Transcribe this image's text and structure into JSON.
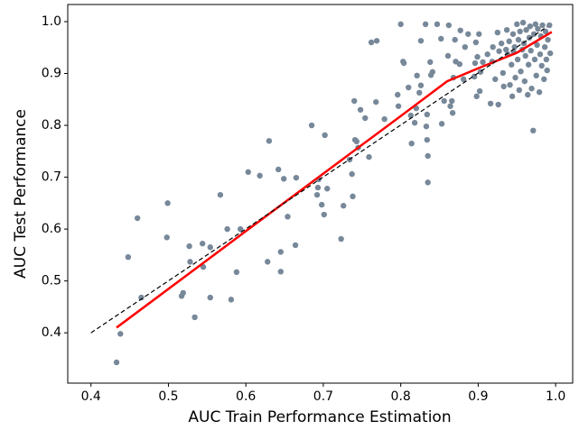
{
  "chart_data": {
    "type": "scatter",
    "xlabel": "AUC Train Performance Estimation",
    "ylabel": "AUC Test Performance",
    "xlim": [
      0.37,
      1.022
    ],
    "ylim": [
      0.303,
      1.033
    ],
    "xticks": [
      0.4,
      0.5,
      0.6,
      0.7,
      0.8,
      0.9,
      {
        "value": 1,
        "label": "1.0"
      }
    ],
    "yticks": [
      0.4,
      0.5,
      0.6,
      0.7,
      0.8,
      0.9,
      {
        "value": 1,
        "label": "1.0"
      }
    ],
    "series": [
      {
        "type": "scatter",
        "color": "#778899",
        "x": [
          0.433,
          0.438,
          0.448,
          0.46,
          0.465,
          0.498,
          0.499,
          0.517,
          0.519,
          0.527,
          0.528,
          0.534,
          0.544,
          0.545,
          0.554,
          0.554,
          0.567,
          0.576,
          0.581,
          0.588,
          0.593,
          0.603,
          0.618,
          0.628,
          0.63,
          0.642,
          0.645,
          0.645,
          0.649,
          0.654,
          0.664,
          0.665,
          0.685,
          0.692,
          0.693,
          0.694,
          0.698,
          0.701,
          0.702,
          0.705,
          0.723,
          0.726,
          0.734,
          0.737,
          0.738,
          0.74,
          0.741,
          0.743,
          0.745,
          0.748,
          0.754,
          0.759,
          0.762,
          0.769,
          0.768,
          0.779,
          0.796,
          0.797,
          0.8,
          0.803,
          0.804,
          0.81,
          0.813,
          0.814,
          0.818,
          0.82,
          0.821,
          0.824,
          0.826,
          0.826,
          0.832,
          0.833,
          0.834,
          0.834,
          0.835,
          0.835,
          0.838,
          0.839,
          0.841,
          0.847,
          0.852,
          0.853,
          0.856,
          0.861,
          0.862,
          0.864,
          0.866,
          0.867,
          0.868,
          0.87,
          0.871,
          0.876,
          0.877,
          0.881,
          0.883,
          0.887,
          0.895,
          0.896,
          0.897,
          0.898,
          0.899,
          0.901,
          0.902,
          0.903,
          0.906,
          0.912,
          0.916,
          0.918,
          0.919,
          0.922,
          0.925,
          0.926,
          0.927,
          0.93,
          0.932,
          0.933,
          0.936,
          0.937,
          0.938,
          0.94,
          0.941,
          0.943,
          0.944,
          0.945,
          0.946,
          0.947,
          0.948,
          0.95,
          0.951,
          0.952,
          0.953,
          0.954,
          0.955,
          0.957,
          0.958,
          0.959,
          0.96,
          0.961,
          0.962,
          0.964,
          0.965,
          0.966,
          0.967,
          0.968,
          0.969,
          0.971,
          0.972,
          0.973,
          0.974,
          0.975,
          0.976,
          0.977,
          0.979,
          0.98,
          0.981,
          0.982,
          0.983,
          0.985,
          0.986,
          0.987,
          0.988,
          0.989,
          0.99,
          0.992,
          0.993
        ],
        "values": [
          0.343,
          0.398,
          0.546,
          0.621,
          0.468,
          0.584,
          0.65,
          0.471,
          0.477,
          0.567,
          0.537,
          0.43,
          0.572,
          0.527,
          0.468,
          0.565,
          0.666,
          0.6,
          0.464,
          0.517,
          0.6,
          0.71,
          0.703,
          0.537,
          0.77,
          0.715,
          0.556,
          0.518,
          0.697,
          0.624,
          0.569,
          0.699,
          0.8,
          0.666,
          0.68,
          0.696,
          0.647,
          0.628,
          0.781,
          0.678,
          0.581,
          0.645,
          0.734,
          0.706,
          0.663,
          0.847,
          0.772,
          0.769,
          0.757,
          0.83,
          0.814,
          0.739,
          0.96,
          0.963,
          0.845,
          0.812,
          0.859,
          0.837,
          0.995,
          0.923,
          0.92,
          0.873,
          0.819,
          0.765,
          0.805,
          0.833,
          0.896,
          0.863,
          0.877,
          0.963,
          0.995,
          0.798,
          0.772,
          0.821,
          0.741,
          0.69,
          0.922,
          0.897,
          0.903,
          0.995,
          0.967,
          0.803,
          0.847,
          0.934,
          0.993,
          0.837,
          0.847,
          0.824,
          0.892,
          0.965,
          0.923,
          0.918,
          0.983,
          0.889,
          0.951,
          0.976,
          0.894,
          0.92,
          0.96,
          0.856,
          0.932,
          0.976,
          0.866,
          0.903,
          0.922,
          0.937,
          0.842,
          0.923,
          0.951,
          0.889,
          0.979,
          0.84,
          0.943,
          0.958,
          0.901,
          0.875,
          0.946,
          0.984,
          0.937,
          0.962,
          0.878,
          0.917,
          0.856,
          0.976,
          0.941,
          0.951,
          0.892,
          0.995,
          0.927,
          0.965,
          0.868,
          0.981,
          0.904,
          0.946,
          0.998,
          0.958,
          0.885,
          0.934,
          0.984,
          0.859,
          0.917,
          0.969,
          0.991,
          0.944,
          0.871,
          0.79,
          0.976,
          0.927,
          0.995,
          0.896,
          0.955,
          0.986,
          0.864,
          0.937,
          0.972,
          0.915,
          0.993,
          0.889,
          0.951,
          0.981,
          0.927,
          0.906,
          0.965,
          0.993,
          0.939
        ]
      },
      {
        "type": "line",
        "color": "#ff0000",
        "x": [
          0.433,
          0.6,
          0.8,
          0.86,
          0.9,
          0.95,
          0.995
        ],
        "values": [
          0.41,
          0.596,
          0.818,
          0.885,
          0.91,
          0.94,
          0.98
        ]
      },
      {
        "type": "line",
        "color": "#000000",
        "dashed": true,
        "x": [
          0.4,
          0.989
        ],
        "values": [
          0.4,
          0.99
        ]
      }
    ]
  }
}
